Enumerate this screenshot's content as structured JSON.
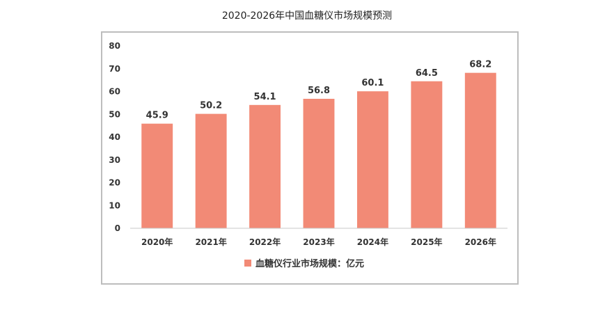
{
  "page": {
    "title": "2020-2026年中国血糖仪市场规模预测"
  },
  "colors": {
    "bar": "#F28A76",
    "axis": "#c8c8c8",
    "frame": "#bdbdbd"
  },
  "chart_data": {
    "type": "bar",
    "title": "2020-2026年中国血糖仪市场规模预测",
    "categories": [
      "2020年",
      "2021年",
      "2022年",
      "2023年",
      "2024年",
      "2025年",
      "2026年"
    ],
    "series": [
      {
        "name": "血糖仪行业市场规模：亿元",
        "values": [
          45.9,
          50.2,
          54.1,
          56.8,
          60.1,
          64.5,
          68.2
        ],
        "labels": [
          "45.9",
          "50.2",
          "54.1",
          "56.8",
          "60.1",
          "64.5",
          "68.2"
        ]
      }
    ],
    "yticks": [
      "0",
      "10",
      "20",
      "30",
      "40",
      "50",
      "60",
      "70",
      "80"
    ],
    "ylim": [
      0,
      80
    ],
    "grid": false,
    "legend": "bottom",
    "xlabel": "",
    "ylabel": ""
  }
}
